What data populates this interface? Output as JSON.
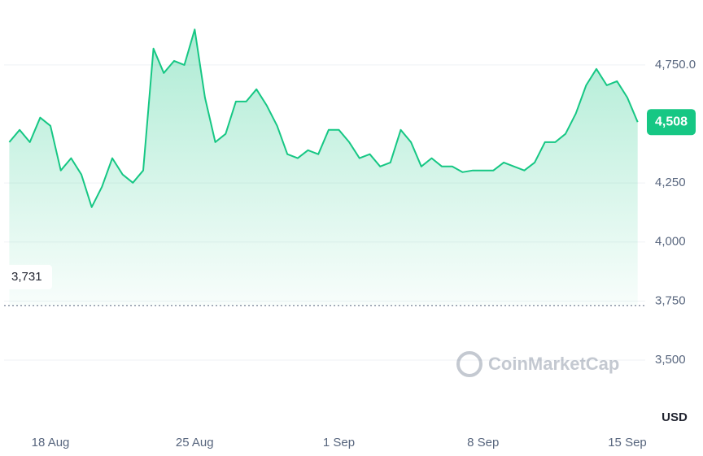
{
  "chart_data": {
    "type": "line",
    "categories": [
      null,
      null,
      null,
      null,
      "18 Aug",
      null,
      null,
      null,
      null,
      null,
      null,
      null,
      null,
      null,
      null,
      null,
      null,
      null,
      "25 Aug",
      null,
      null,
      null,
      null,
      null,
      null,
      null,
      null,
      null,
      null,
      null,
      null,
      null,
      "1 Sep",
      null,
      null,
      null,
      null,
      null,
      null,
      null,
      null,
      null,
      null,
      null,
      null,
      null,
      "8 Sep",
      null,
      null,
      null,
      null,
      null,
      null,
      null,
      null,
      null,
      null,
      null,
      null,
      null,
      "15 Sep",
      null
    ],
    "values": [
      4423,
      4475,
      4423,
      4527,
      4492,
      4303,
      4355,
      4286,
      4148,
      4234,
      4355,
      4286,
      4251,
      4303,
      4819,
      4716,
      4767,
      4750,
      4900,
      4612,
      4423,
      4458,
      4595,
      4595,
      4647,
      4578,
      4492,
      4372,
      4355,
      4389,
      4372,
      4475,
      4475,
      4423,
      4355,
      4372,
      4320,
      4337,
      4475,
      4423,
      4320,
      4355,
      4320,
      4320,
      4296,
      4303,
      4303,
      4303,
      4337,
      4320,
      4303,
      4337,
      4423,
      4423,
      4458,
      4544,
      4664,
      4733,
      4664,
      4681,
      4612,
      4508
    ],
    "color": "#16c784",
    "ylim": [
      3235,
      5025
    ],
    "yticks": [
      {
        "value": 4750,
        "label": "4,750.0"
      },
      {
        "value": 4250,
        "label": "4,250"
      },
      {
        "value": 4000,
        "label": "4,000"
      },
      {
        "value": 3750,
        "label": "3,750"
      },
      {
        "value": 3500,
        "label": "3,500"
      }
    ],
    "grid": true,
    "y_axis_label": "USD",
    "reference_line": {
      "value": 3731,
      "label": "3,731"
    },
    "last_price": {
      "value": 4508,
      "label": "4,508"
    },
    "watermark": "CoinMarketCap"
  }
}
